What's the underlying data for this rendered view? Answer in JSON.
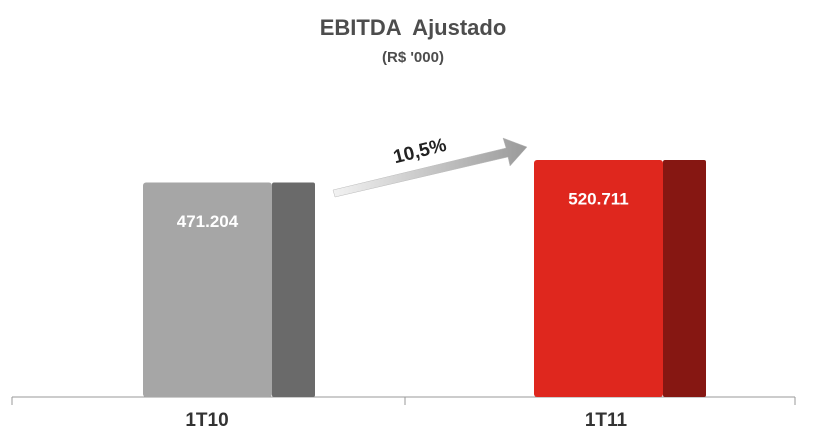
{
  "chart_data": {
    "type": "bar",
    "title": "EBITDA  Ajustado",
    "subtitle": "(R$ '000)",
    "categories": [
      "1T10",
      "1T11"
    ],
    "values": [
      471204,
      520711
    ],
    "value_labels": [
      "471.204",
      "520.711"
    ],
    "colors": [
      "#a6a6a6",
      "#df271e"
    ],
    "annotation": "10,5%"
  }
}
